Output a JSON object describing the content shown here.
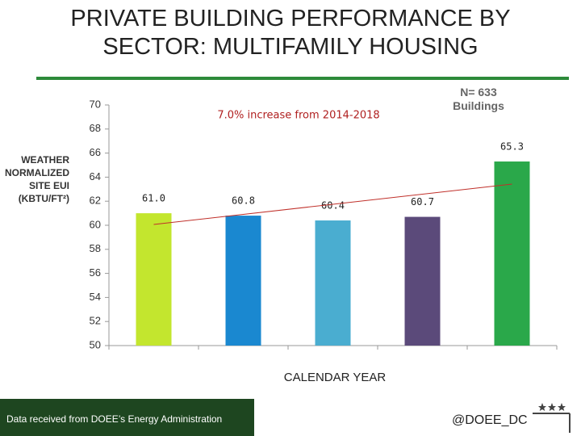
{
  "chart_data": {
    "type": "bar",
    "title": "PRIVATE BUILDING PERFORMANCE BY SECTOR: MULTIFAMILY HOUSING",
    "annotation": "7.0% increase from 2014-2018",
    "note": "N= 633 Buildings",
    "y_label": "WEATHER NORMALIZED SITE EUI (KBTU/FT²)",
    "x_label": "CALENDAR YEAR",
    "categories": [
      null,
      null,
      null,
      null,
      null
    ],
    "values": [
      61.0,
      60.8,
      60.4,
      60.7,
      65.3
    ],
    "value_labels": [
      "61.0",
      "60.8",
      "60.4",
      "60.7",
      "65.3"
    ],
    "colors": [
      "#c3e62e",
      "#1a88d0",
      "#4aadd0",
      "#5b4a7a",
      "#2aa84a"
    ],
    "ylim": [
      50,
      70
    ],
    "yticks": [
      50,
      52,
      54,
      56,
      58,
      60,
      62,
      64,
      66,
      68,
      70
    ],
    "grid": false
  },
  "footer": {
    "source": "Data received from DOEE’s Energy Administration",
    "handle": "@DOEE_DC"
  }
}
